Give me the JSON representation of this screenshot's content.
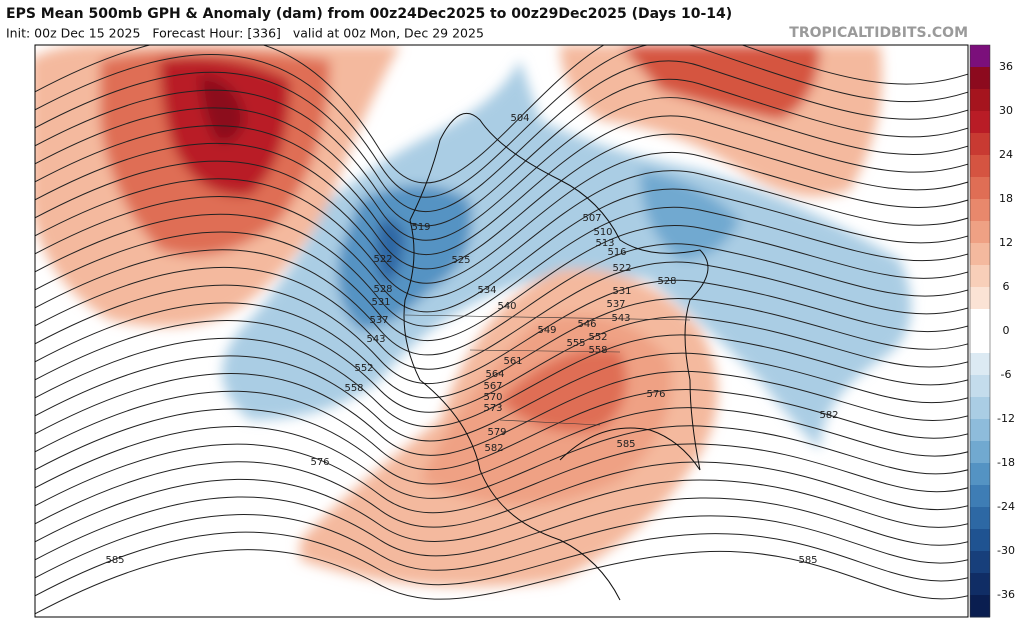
{
  "header": {
    "title": "EPS Mean 500mb GPH & Anomaly (dam) from 00z24Dec2025 to 00z29Dec2025 (Days 10-14)",
    "subtitle": "Init: 00z Dec 15 2025   Forecast Hour: [336]   valid at 00z Mon, Dec 29 2025",
    "credit": "TROPICALTIDBITS.COM"
  },
  "colorbar": {
    "ticks": [
      36,
      30,
      24,
      18,
      12,
      6,
      0,
      -6,
      -12,
      -18,
      -24,
      -30,
      -36
    ],
    "colors": [
      "#7b0f7b",
      "#8c0a1e",
      "#a5141e",
      "#b91c26",
      "#c83a32",
      "#d55441",
      "#df6e55",
      "#e8886c",
      "#efa184",
      "#f4b99e",
      "#f8cfb9",
      "#fbe3d5",
      "#ffffff",
      "#ffffff",
      "#dceaf3",
      "#c4dcec",
      "#aacde4",
      "#8ebcdb",
      "#71a9d0",
      "#5493c3",
      "#3e7db5",
      "#2d68a4",
      "#1f5391",
      "#173f7b",
      "#102d65",
      "#0a1e50"
    ]
  },
  "contour_labels": [
    "504",
    "507",
    "510",
    "513",
    "516",
    "519",
    "522",
    "522",
    "525",
    "528",
    "528",
    "531",
    "531",
    "534",
    "537",
    "537",
    "540",
    "543",
    "543",
    "546",
    "549",
    "552",
    "552",
    "555",
    "558",
    "558",
    "561",
    "564",
    "567",
    "570",
    "573",
    "576",
    "576",
    "579",
    "582",
    "582",
    "585",
    "585",
    "585"
  ]
}
